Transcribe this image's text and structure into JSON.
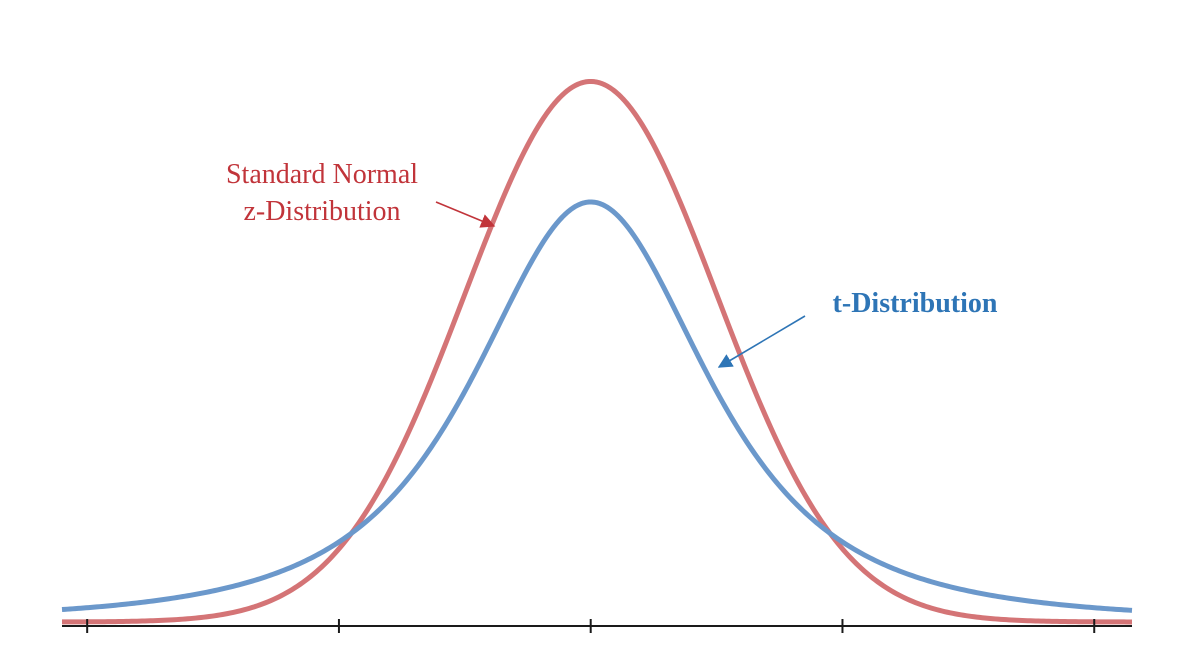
{
  "chart_data": {
    "type": "line",
    "title": "",
    "xlabel": "",
    "ylabel": "",
    "grid": false,
    "legend": "none",
    "xlim": [
      -4.2,
      4.3
    ],
    "ylim": [
      0,
      0.4
    ],
    "x_ticks": [
      -4,
      -2,
      0,
      2,
      4
    ],
    "series": [
      {
        "name": "Standard Normal z-Distribution",
        "color": "#d47476",
        "distribution": "normal",
        "peak": 0.3989,
        "x": [
          -4.2,
          -4.0,
          -3.8,
          -3.6,
          -3.4,
          -3.2,
          -3.0,
          -2.8,
          -2.6,
          -2.4,
          -2.2,
          -2.0,
          -1.8,
          -1.6,
          -1.4,
          -1.2,
          -1.0,
          -0.8,
          -0.6,
          -0.4,
          -0.2,
          0.0,
          0.2,
          0.4,
          0.6,
          0.8,
          1.0,
          1.2,
          1.4,
          1.6,
          1.8,
          2.0,
          2.2,
          2.4,
          2.6,
          2.8,
          3.0,
          3.2,
          3.4,
          3.6,
          3.8,
          4.0,
          4.3
        ],
        "y": [
          0.0001,
          0.0001,
          0.0003,
          0.0006,
          0.0012,
          0.0024,
          0.0044,
          0.0079,
          0.0136,
          0.0224,
          0.0355,
          0.054,
          0.079,
          0.1109,
          0.1497,
          0.1942,
          0.242,
          0.2897,
          0.3332,
          0.3683,
          0.391,
          0.3989,
          0.391,
          0.3683,
          0.3332,
          0.2897,
          0.242,
          0.1942,
          0.1497,
          0.1109,
          0.079,
          0.054,
          0.0355,
          0.0224,
          0.0136,
          0.0079,
          0.0044,
          0.0024,
          0.0012,
          0.0006,
          0.0003,
          0.0001,
          4e-05
        ]
      },
      {
        "name": "t-Distribution",
        "color": "#6b98cb",
        "distribution": "t",
        "peak": 0.31,
        "x": [
          -4.2,
          -4.0,
          -3.8,
          -3.6,
          -3.4,
          -3.2,
          -3.0,
          -2.8,
          -2.6,
          -2.4,
          -2.2,
          -2.0,
          -1.8,
          -1.6,
          -1.4,
          -1.2,
          -1.0,
          -0.8,
          -0.6,
          -0.4,
          -0.2,
          0.0,
          0.2,
          0.4,
          0.6,
          0.8,
          1.0,
          1.2,
          1.4,
          1.6,
          1.8,
          2.0,
          2.2,
          2.4,
          2.6,
          2.8,
          3.0,
          3.2,
          3.4,
          3.6,
          3.8,
          4.0,
          4.3
        ],
        "y": [
          0.0074,
          0.0088,
          0.0106,
          0.0127,
          0.0152,
          0.0184,
          0.0224,
          0.0274,
          0.0336,
          0.0414,
          0.0512,
          0.0637,
          0.0795,
          0.0993,
          0.1238,
          0.1533,
          0.1875,
          0.2243,
          0.2599,
          0.2887,
          0.3055,
          0.31,
          0.3055,
          0.2887,
          0.2599,
          0.2243,
          0.1875,
          0.1533,
          0.1238,
          0.0993,
          0.0795,
          0.0637,
          0.0512,
          0.0414,
          0.0336,
          0.0274,
          0.0224,
          0.0184,
          0.0152,
          0.0127,
          0.0106,
          0.0088,
          0.0068
        ]
      }
    ],
    "annotations": [
      {
        "lines": [
          "Standard Normal",
          "z-Distribution"
        ],
        "color": "#c1343a",
        "series": "Standard Normal z-Distribution"
      },
      {
        "lines": [
          "t-Distribution"
        ],
        "color": "#2e75b6",
        "series": "t-Distribution",
        "bold": true
      }
    ],
    "axis_color": "#1a1a1a"
  }
}
